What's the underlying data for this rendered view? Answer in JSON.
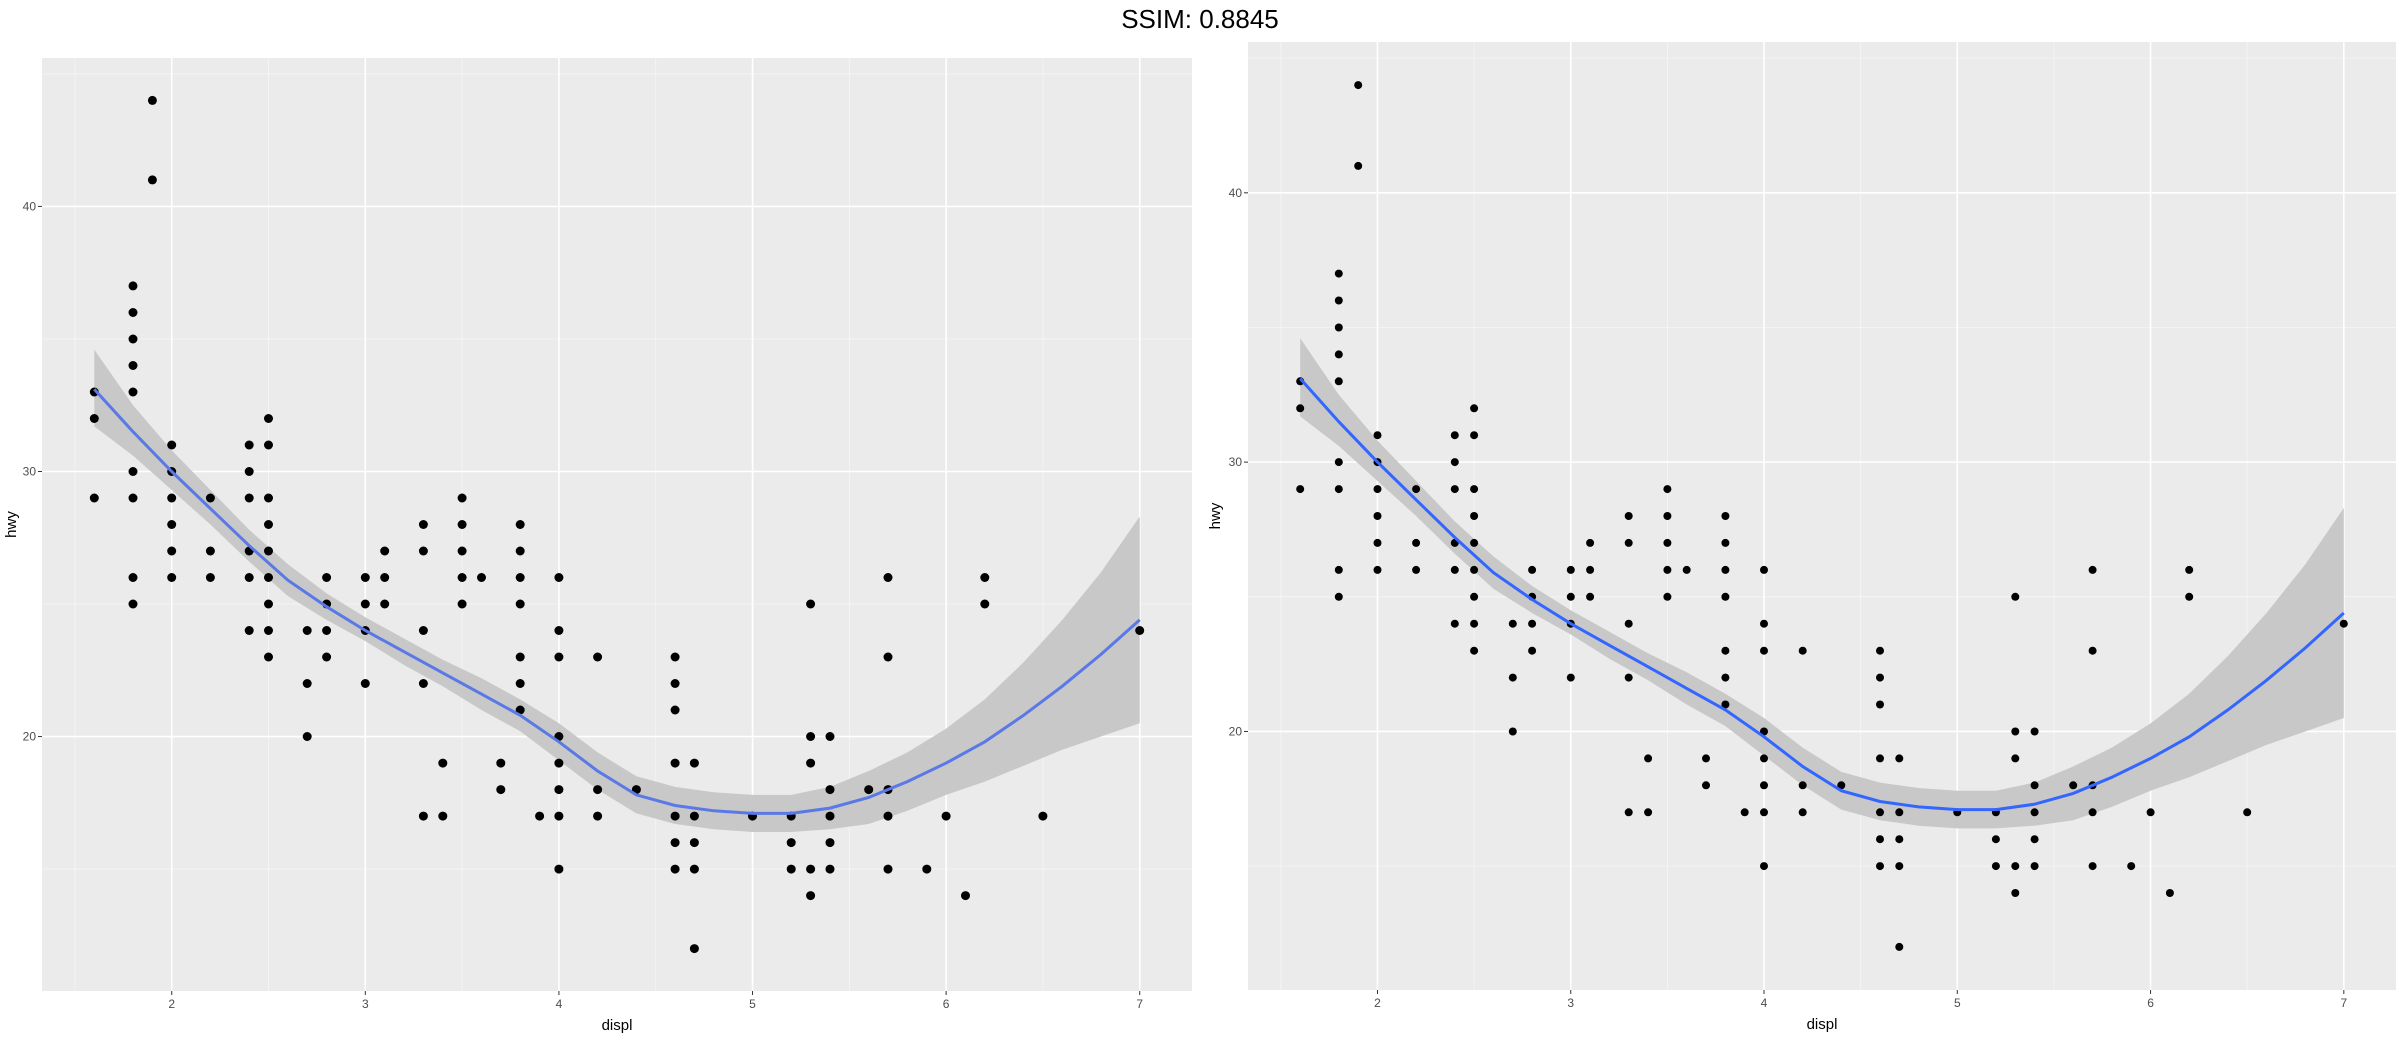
{
  "figure": {
    "title": "SSIM: 0.8845"
  },
  "chart_data": [
    {
      "type": "scatter",
      "xlabel": "displ",
      "ylabel": "hwy",
      "xticks": [
        "2",
        "3",
        "4",
        "5",
        "6",
        "7"
      ],
      "yticks": [
        "20",
        "30",
        "40"
      ],
      "xlim": [
        1.33,
        7.27
      ],
      "ylim": [
        10.4,
        45.6
      ],
      "grid": true,
      "smooth": {
        "method": "loess",
        "x": [
          1.6,
          1.8,
          2.0,
          2.2,
          2.4,
          2.6,
          2.8,
          3.0,
          3.2,
          3.4,
          3.6,
          3.8,
          4.0,
          4.2,
          4.4,
          4.6,
          4.8,
          5.0,
          5.2,
          5.4,
          5.6,
          5.8,
          6.0,
          6.2,
          6.4,
          6.6,
          6.8,
          7.0
        ],
        "y": [
          33.1,
          31.5,
          30.0,
          28.6,
          27.2,
          25.9,
          24.9,
          24.0,
          23.2,
          22.4,
          21.6,
          20.8,
          19.8,
          18.7,
          17.8,
          17.4,
          17.2,
          17.1,
          17.1,
          17.3,
          17.7,
          18.3,
          19.0,
          19.8,
          20.8,
          21.9,
          23.1,
          24.4
        ],
        "lower": [
          31.7,
          30.6,
          29.3,
          28.0,
          26.6,
          25.3,
          24.4,
          23.6,
          22.7,
          21.9,
          21.0,
          20.2,
          19.1,
          18.0,
          17.1,
          16.7,
          16.5,
          16.4,
          16.4,
          16.5,
          16.7,
          17.2,
          17.8,
          18.3,
          18.9,
          19.5,
          20.0,
          20.5
        ],
        "upper": [
          34.6,
          32.5,
          30.8,
          29.3,
          27.8,
          26.5,
          25.4,
          24.5,
          23.7,
          22.9,
          22.2,
          21.4,
          20.5,
          19.4,
          18.5,
          18.1,
          17.9,
          17.8,
          17.8,
          18.1,
          18.7,
          19.4,
          20.3,
          21.4,
          22.8,
          24.4,
          26.2,
          28.3
        ]
      },
      "points": [
        [
          1.6,
          33
        ],
        [
          1.6,
          32
        ],
        [
          1.6,
          29
        ],
        [
          1.8,
          29
        ],
        [
          1.8,
          30
        ],
        [
          1.8,
          26
        ],
        [
          1.8,
          25
        ],
        [
          1.8,
          33
        ],
        [
          1.8,
          34
        ],
        [
          1.8,
          35
        ],
        [
          1.8,
          36
        ],
        [
          1.8,
          37
        ],
        [
          1.9,
          44
        ],
        [
          1.9,
          41
        ],
        [
          2.0,
          31
        ],
        [
          2.0,
          30
        ],
        [
          2.0,
          29
        ],
        [
          2.0,
          28
        ],
        [
          2.0,
          27
        ],
        [
          2.0,
          26
        ],
        [
          2.2,
          29
        ],
        [
          2.2,
          27
        ],
        [
          2.2,
          26
        ],
        [
          2.4,
          31
        ],
        [
          2.4,
          30
        ],
        [
          2.4,
          29
        ],
        [
          2.4,
          27
        ],
        [
          2.4,
          26
        ],
        [
          2.4,
          24
        ],
        [
          2.5,
          32
        ],
        [
          2.5,
          31
        ],
        [
          2.5,
          29
        ],
        [
          2.5,
          28
        ],
        [
          2.5,
          27
        ],
        [
          2.5,
          26
        ],
        [
          2.5,
          25
        ],
        [
          2.5,
          24
        ],
        [
          2.5,
          23
        ],
        [
          2.7,
          24
        ],
        [
          2.7,
          22
        ],
        [
          2.7,
          20
        ],
        [
          2.8,
          26
        ],
        [
          2.8,
          25
        ],
        [
          2.8,
          24
        ],
        [
          2.8,
          23
        ],
        [
          3.0,
          26
        ],
        [
          3.0,
          25
        ],
        [
          3.0,
          24
        ],
        [
          3.0,
          22
        ],
        [
          3.1,
          27
        ],
        [
          3.1,
          26
        ],
        [
          3.1,
          25
        ],
        [
          3.3,
          28
        ],
        [
          3.3,
          27
        ],
        [
          3.3,
          24
        ],
        [
          3.3,
          22
        ],
        [
          3.3,
          17
        ],
        [
          3.4,
          19
        ],
        [
          3.4,
          17
        ],
        [
          3.5,
          29
        ],
        [
          3.5,
          28
        ],
        [
          3.5,
          27
        ],
        [
          3.5,
          26
        ],
        [
          3.5,
          25
        ],
        [
          3.6,
          26
        ],
        [
          3.7,
          19
        ],
        [
          3.7,
          18
        ],
        [
          3.8,
          28
        ],
        [
          3.8,
          27
        ],
        [
          3.8,
          26
        ],
        [
          3.8,
          25
        ],
        [
          3.8,
          23
        ],
        [
          3.8,
          22
        ],
        [
          3.8,
          21
        ],
        [
          3.9,
          17
        ],
        [
          4.0,
          26
        ],
        [
          4.0,
          24
        ],
        [
          4.0,
          23
        ],
        [
          4.0,
          20
        ],
        [
          4.0,
          19
        ],
        [
          4.0,
          18
        ],
        [
          4.0,
          17
        ],
        [
          4.0,
          15
        ],
        [
          4.2,
          23
        ],
        [
          4.2,
          18
        ],
        [
          4.2,
          17
        ],
        [
          4.4,
          18
        ],
        [
          4.6,
          23
        ],
        [
          4.6,
          22
        ],
        [
          4.6,
          21
        ],
        [
          4.6,
          19
        ],
        [
          4.6,
          17
        ],
        [
          4.6,
          16
        ],
        [
          4.6,
          15
        ],
        [
          4.7,
          19
        ],
        [
          4.7,
          17
        ],
        [
          4.7,
          16
        ],
        [
          4.7,
          15
        ],
        [
          4.7,
          12
        ],
        [
          5.0,
          17
        ],
        [
          5.2,
          17
        ],
        [
          5.2,
          16
        ],
        [
          5.2,
          15
        ],
        [
          5.3,
          25
        ],
        [
          5.3,
          20
        ],
        [
          5.3,
          19
        ],
        [
          5.3,
          15
        ],
        [
          5.3,
          14
        ],
        [
          5.4,
          20
        ],
        [
          5.4,
          18
        ],
        [
          5.4,
          17
        ],
        [
          5.4,
          16
        ],
        [
          5.4,
          15
        ],
        [
          5.6,
          18
        ],
        [
          5.7,
          26
        ],
        [
          5.7,
          23
        ],
        [
          5.7,
          18
        ],
        [
          5.7,
          17
        ],
        [
          5.7,
          15
        ],
        [
          5.9,
          15
        ],
        [
          6.0,
          17
        ],
        [
          6.1,
          14
        ],
        [
          6.2,
          26
        ],
        [
          6.2,
          25
        ],
        [
          6.5,
          17
        ],
        [
          7.0,
          24
        ]
      ]
    },
    {
      "type": "scatter",
      "xlabel": "displ",
      "ylabel": "hwy",
      "xticks": [
        "2",
        "3",
        "4",
        "5",
        "6",
        "7"
      ],
      "yticks": [
        "20",
        "30",
        "40"
      ],
      "xlim": [
        1.33,
        7.27
      ],
      "ylim": [
        10.4,
        45.6
      ],
      "grid": true,
      "smooth": {
        "method": "loess",
        "x": [
          1.6,
          1.8,
          2.0,
          2.2,
          2.4,
          2.6,
          2.8,
          3.0,
          3.2,
          3.4,
          3.6,
          3.8,
          4.0,
          4.2,
          4.4,
          4.6,
          4.8,
          5.0,
          5.2,
          5.4,
          5.6,
          5.8,
          6.0,
          6.2,
          6.4,
          6.6,
          6.8,
          7.0
        ],
        "y": [
          33.1,
          31.5,
          30.0,
          28.6,
          27.2,
          25.9,
          24.9,
          24.0,
          23.2,
          22.4,
          21.6,
          20.8,
          19.8,
          18.7,
          17.8,
          17.4,
          17.2,
          17.1,
          17.1,
          17.3,
          17.7,
          18.3,
          19.0,
          19.8,
          20.8,
          21.9,
          23.1,
          24.4
        ],
        "lower": [
          31.7,
          30.6,
          29.3,
          28.0,
          26.6,
          25.3,
          24.4,
          23.6,
          22.7,
          21.9,
          21.0,
          20.2,
          19.1,
          18.0,
          17.1,
          16.7,
          16.5,
          16.4,
          16.4,
          16.5,
          16.7,
          17.2,
          17.8,
          18.3,
          18.9,
          19.5,
          20.0,
          20.5
        ],
        "upper": [
          34.6,
          32.5,
          30.8,
          29.3,
          27.8,
          26.5,
          25.4,
          24.5,
          23.7,
          22.9,
          22.2,
          21.4,
          20.5,
          19.4,
          18.5,
          18.1,
          17.9,
          17.8,
          17.8,
          18.1,
          18.7,
          19.4,
          20.3,
          21.4,
          22.8,
          24.4,
          26.2,
          28.3
        ]
      },
      "points": [
        [
          1.6,
          33
        ],
        [
          1.6,
          32
        ],
        [
          1.6,
          29
        ],
        [
          1.8,
          29
        ],
        [
          1.8,
          30
        ],
        [
          1.8,
          26
        ],
        [
          1.8,
          25
        ],
        [
          1.8,
          33
        ],
        [
          1.8,
          34
        ],
        [
          1.8,
          35
        ],
        [
          1.8,
          36
        ],
        [
          1.8,
          37
        ],
        [
          1.9,
          44
        ],
        [
          1.9,
          41
        ],
        [
          2.0,
          31
        ],
        [
          2.0,
          30
        ],
        [
          2.0,
          29
        ],
        [
          2.0,
          28
        ],
        [
          2.0,
          27
        ],
        [
          2.0,
          26
        ],
        [
          2.2,
          29
        ],
        [
          2.2,
          27
        ],
        [
          2.2,
          26
        ],
        [
          2.4,
          31
        ],
        [
          2.4,
          30
        ],
        [
          2.4,
          29
        ],
        [
          2.4,
          27
        ],
        [
          2.4,
          26
        ],
        [
          2.4,
          24
        ],
        [
          2.5,
          32
        ],
        [
          2.5,
          31
        ],
        [
          2.5,
          29
        ],
        [
          2.5,
          28
        ],
        [
          2.5,
          27
        ],
        [
          2.5,
          26
        ],
        [
          2.5,
          25
        ],
        [
          2.5,
          24
        ],
        [
          2.5,
          23
        ],
        [
          2.7,
          24
        ],
        [
          2.7,
          22
        ],
        [
          2.7,
          20
        ],
        [
          2.8,
          26
        ],
        [
          2.8,
          25
        ],
        [
          2.8,
          24
        ],
        [
          2.8,
          23
        ],
        [
          3.0,
          26
        ],
        [
          3.0,
          25
        ],
        [
          3.0,
          24
        ],
        [
          3.0,
          22
        ],
        [
          3.1,
          27
        ],
        [
          3.1,
          26
        ],
        [
          3.1,
          25
        ],
        [
          3.3,
          28
        ],
        [
          3.3,
          27
        ],
        [
          3.3,
          24
        ],
        [
          3.3,
          22
        ],
        [
          3.3,
          17
        ],
        [
          3.4,
          19
        ],
        [
          3.4,
          17
        ],
        [
          3.5,
          29
        ],
        [
          3.5,
          28
        ],
        [
          3.5,
          27
        ],
        [
          3.5,
          26
        ],
        [
          3.5,
          25
        ],
        [
          3.6,
          26
        ],
        [
          3.7,
          19
        ],
        [
          3.7,
          18
        ],
        [
          3.8,
          28
        ],
        [
          3.8,
          27
        ],
        [
          3.8,
          26
        ],
        [
          3.8,
          25
        ],
        [
          3.8,
          23
        ],
        [
          3.8,
          22
        ],
        [
          3.8,
          21
        ],
        [
          3.9,
          17
        ],
        [
          4.0,
          26
        ],
        [
          4.0,
          24
        ],
        [
          4.0,
          23
        ],
        [
          4.0,
          20
        ],
        [
          4.0,
          19
        ],
        [
          4.0,
          18
        ],
        [
          4.0,
          17
        ],
        [
          4.0,
          15
        ],
        [
          4.2,
          23
        ],
        [
          4.2,
          18
        ],
        [
          4.2,
          17
        ],
        [
          4.4,
          18
        ],
        [
          4.6,
          23
        ],
        [
          4.6,
          22
        ],
        [
          4.6,
          21
        ],
        [
          4.6,
          19
        ],
        [
          4.6,
          17
        ],
        [
          4.6,
          16
        ],
        [
          4.6,
          15
        ],
        [
          4.7,
          19
        ],
        [
          4.7,
          17
        ],
        [
          4.7,
          16
        ],
        [
          4.7,
          15
        ],
        [
          4.7,
          12
        ],
        [
          5.0,
          17
        ],
        [
          5.2,
          17
        ],
        [
          5.2,
          16
        ],
        [
          5.2,
          15
        ],
        [
          5.3,
          25
        ],
        [
          5.3,
          20
        ],
        [
          5.3,
          19
        ],
        [
          5.3,
          15
        ],
        [
          5.3,
          14
        ],
        [
          5.4,
          20
        ],
        [
          5.4,
          18
        ],
        [
          5.4,
          17
        ],
        [
          5.4,
          16
        ],
        [
          5.4,
          15
        ],
        [
          5.6,
          18
        ],
        [
          5.7,
          26
        ],
        [
          5.7,
          23
        ],
        [
          5.7,
          18
        ],
        [
          5.7,
          17
        ],
        [
          5.7,
          15
        ],
        [
          5.9,
          15
        ],
        [
          6.0,
          17
        ],
        [
          6.1,
          14
        ],
        [
          6.2,
          26
        ],
        [
          6.2,
          25
        ],
        [
          6.5,
          17
        ],
        [
          7.0,
          24
        ]
      ]
    }
  ],
  "colors": {
    "panel_background": "#ebebeb",
    "grid_major": "#ffffff",
    "points": "#000000",
    "ribbon": "#c8c8c8",
    "smooth_line_left": "#5a78e6",
    "smooth_line_right": "#3366ff"
  }
}
